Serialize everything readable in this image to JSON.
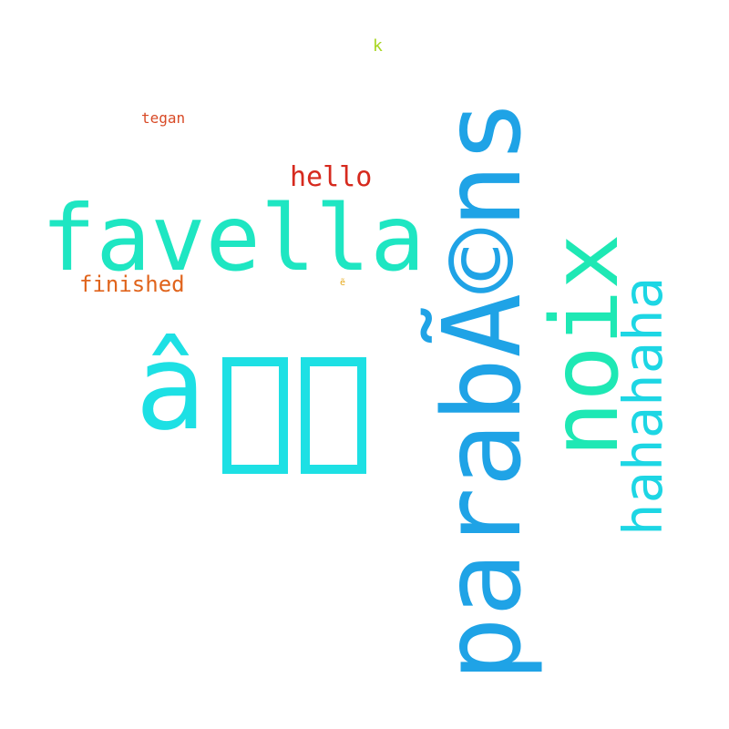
{
  "words": [
    {
      "id": "parabens",
      "text": "parabÃ©ns",
      "color": "#1fa3e6"
    },
    {
      "id": "glyph",
      "text": "â",
      "color": "#1de0e4"
    },
    {
      "id": "favella",
      "text": "favella",
      "color": "#1ee6c2"
    },
    {
      "id": "noix",
      "text": "noix",
      "color": "#1ee8b4"
    },
    {
      "id": "hahahaha",
      "text": "hahahaha",
      "color": "#1dd6e4"
    },
    {
      "id": "hello",
      "text": "hello",
      "color": "#d62a1e"
    },
    {
      "id": "finished",
      "text": "finished",
      "color": "#e0641c"
    },
    {
      "id": "tegan",
      "text": "tegan",
      "color": "#d84a26"
    },
    {
      "id": "k",
      "text": "k",
      "color": "#a8d620"
    },
    {
      "id": "tiny",
      "text": "ẽ",
      "color": "#e6a818"
    }
  ]
}
